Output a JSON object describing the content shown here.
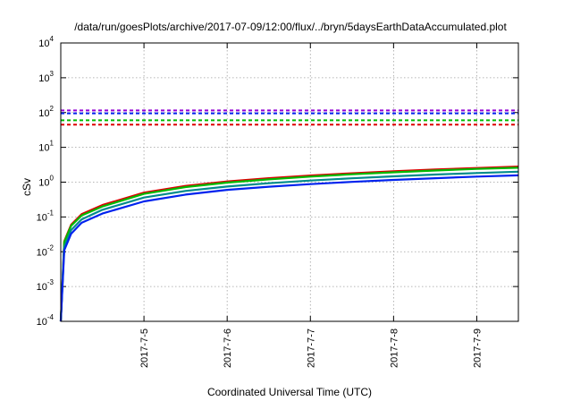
{
  "colors": {
    "red": "#dd0000",
    "green": "#00bb00",
    "teal": "#008b8b",
    "blue": "#0022ee",
    "purple": "#9400d3",
    "grid": "#a0a0a0"
  },
  "chart_data": {
    "type": "line",
    "title": "/data/run/goesPlots/archive/2017-07-09/12:00/flux/../bryn/5daysEarthDataAccumulated.plot",
    "xlabel": "Coordinated Universal Time (UTC)",
    "ylabel": "cSv",
    "y_scale": "log",
    "ylim": [
      0.0001,
      10000
    ],
    "xlim": [
      "2017-07-04 00:00",
      "2017-07-09 12:00"
    ],
    "x_ticks": [
      "2017-7-5",
      "2017-7-6",
      "2017-7-7",
      "2017-7-8",
      "2017-7-9"
    ],
    "y_ticks": [
      {
        "base": "10",
        "exp": "-4",
        "value": 0.0001
      },
      {
        "base": "10",
        "exp": "-3",
        "value": 0.001
      },
      {
        "base": "10",
        "exp": "-2",
        "value": 0.01
      },
      {
        "base": "10",
        "exp": "-1",
        "value": 0.1
      },
      {
        "base": "10",
        "exp": "0",
        "value": 1
      },
      {
        "base": "10",
        "exp": "1",
        "value": 10
      },
      {
        "base": "10",
        "exp": "2",
        "value": 100
      },
      {
        "base": "10",
        "exp": "3",
        "value": 1000
      },
      {
        "base": "10",
        "exp": "4",
        "value": 10000
      }
    ],
    "grid": true,
    "accumulated_series": [
      {
        "color": "red",
        "x": [
          "2017-07-04 00:00",
          "2017-07-04 01:00",
          "2017-07-04 03:00",
          "2017-07-04 06:00",
          "2017-07-04 12:00",
          "2017-07-05 00:00",
          "2017-07-05 12:00",
          "2017-07-06 00:00",
          "2017-07-06 12:00",
          "2017-07-07 00:00",
          "2017-07-07 12:00",
          "2017-07-08 00:00",
          "2017-07-08 12:00",
          "2017-07-09 00:00",
          "2017-07-09 12:00"
        ],
        "y": [
          0.0001,
          0.02,
          0.06,
          0.12,
          0.22,
          0.5,
          0.78,
          1.05,
          1.3,
          1.55,
          1.8,
          2.05,
          2.3,
          2.55,
          2.8
        ]
      },
      {
        "color": "green",
        "x": [
          "2017-07-04 00:00",
          "2017-07-04 01:00",
          "2017-07-04 03:00",
          "2017-07-04 06:00",
          "2017-07-04 12:00",
          "2017-07-05 00:00",
          "2017-07-05 12:00",
          "2017-07-06 00:00",
          "2017-07-06 12:00",
          "2017-07-07 00:00",
          "2017-07-07 12:00",
          "2017-07-08 00:00",
          "2017-07-08 12:00",
          "2017-07-09 00:00",
          "2017-07-09 12:00"
        ],
        "y": [
          0.0001,
          0.019,
          0.056,
          0.11,
          0.2,
          0.46,
          0.72,
          0.97,
          1.2,
          1.44,
          1.68,
          1.92,
          2.16,
          2.4,
          2.6
        ]
      },
      {
        "color": "teal",
        "x": [
          "2017-07-04 00:00",
          "2017-07-04 01:00",
          "2017-07-04 03:00",
          "2017-07-04 06:00",
          "2017-07-04 12:00",
          "2017-07-05 00:00",
          "2017-07-05 12:00",
          "2017-07-06 00:00",
          "2017-07-06 12:00",
          "2017-07-07 00:00",
          "2017-07-07 12:00",
          "2017-07-08 00:00",
          "2017-07-08 12:00",
          "2017-07-09 00:00",
          "2017-07-09 12:00"
        ],
        "y": [
          0.0001,
          0.014,
          0.042,
          0.085,
          0.16,
          0.36,
          0.56,
          0.75,
          0.93,
          1.11,
          1.29,
          1.47,
          1.65,
          1.83,
          2.0
        ]
      },
      {
        "color": "blue",
        "x": [
          "2017-07-04 00:00",
          "2017-07-04 01:00",
          "2017-07-04 03:00",
          "2017-07-04 06:00",
          "2017-07-04 12:00",
          "2017-07-05 00:00",
          "2017-07-05 12:00",
          "2017-07-06 00:00",
          "2017-07-06 12:00",
          "2017-07-07 00:00",
          "2017-07-07 12:00",
          "2017-07-08 00:00",
          "2017-07-08 12:00",
          "2017-07-09 00:00",
          "2017-07-09 12:00"
        ],
        "y": [
          0.0001,
          0.011,
          0.033,
          0.068,
          0.125,
          0.28,
          0.44,
          0.6,
          0.74,
          0.88,
          1.02,
          1.16,
          1.3,
          1.44,
          1.57
        ]
      }
    ],
    "threshold_lines": [
      {
        "color": "purple",
        "y": 115,
        "style": "dashed"
      },
      {
        "color": "blue",
        "y": 95,
        "style": "dashed"
      },
      {
        "color": "green",
        "y": 60,
        "style": "dashed"
      },
      {
        "color": "red",
        "y": 45,
        "style": "dashed"
      }
    ]
  }
}
